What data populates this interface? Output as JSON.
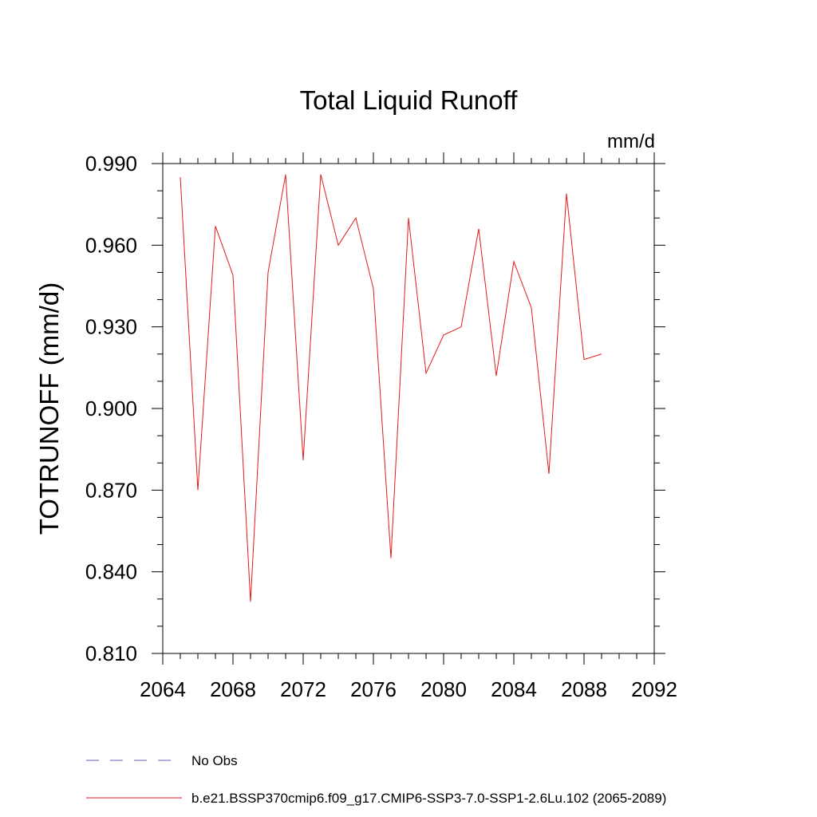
{
  "chart_data": {
    "type": "line",
    "title": "Total Liquid Runoff",
    "units": "mm/d",
    "ylabel": "TOTRUNOFF  (mm/d)",
    "xlabel": "",
    "xlim": [
      2064,
      2092
    ],
    "ylim": [
      0.81,
      0.99
    ],
    "x_ticks": [
      2064,
      2068,
      2072,
      2076,
      2080,
      2084,
      2088,
      2092
    ],
    "x_tick_labels": [
      "2064",
      "2068",
      "2072",
      "2076",
      "2080",
      "2084",
      "2088",
      "2092"
    ],
    "y_ticks": [
      0.81,
      0.84,
      0.87,
      0.9,
      0.93,
      0.96,
      0.99
    ],
    "y_tick_labels": [
      "0.810",
      "0.840",
      "0.870",
      "0.900",
      "0.930",
      "0.960",
      "0.990"
    ],
    "grid": false,
    "legend_position": "bottom",
    "legend": [
      {
        "label": "No Obs",
        "color": "#6a5aa8",
        "style": "dashed"
      },
      {
        "label": "b.e21.BSSP370cmip6.f09_g17.CMIP6-SSP3-7.0-SSP1-2.6Lu.102 (2065-2089)",
        "color": "#e31a1c",
        "style": "solid"
      }
    ],
    "series": [
      {
        "name": "b.e21.BSSP370cmip6.f09_g17.CMIP6-SSP3-7.0-SSP1-2.6Lu.102 (2065-2089)",
        "color": "#e31a1c",
        "x": [
          2065,
          2066,
          2067,
          2068,
          2069,
          2070,
          2071,
          2072,
          2073,
          2074,
          2075,
          2076,
          2077,
          2078,
          2079,
          2080,
          2081,
          2082,
          2083,
          2084,
          2085,
          2086,
          2087,
          2088,
          2089
        ],
        "y": [
          0.985,
          0.87,
          0.967,
          0.949,
          0.829,
          0.95,
          0.986,
          0.881,
          0.986,
          0.96,
          0.97,
          0.944,
          0.845,
          0.97,
          0.913,
          0.927,
          0.93,
          0.966,
          0.912,
          0.954,
          0.937,
          0.876,
          0.979,
          0.918,
          0.92
        ]
      }
    ]
  }
}
